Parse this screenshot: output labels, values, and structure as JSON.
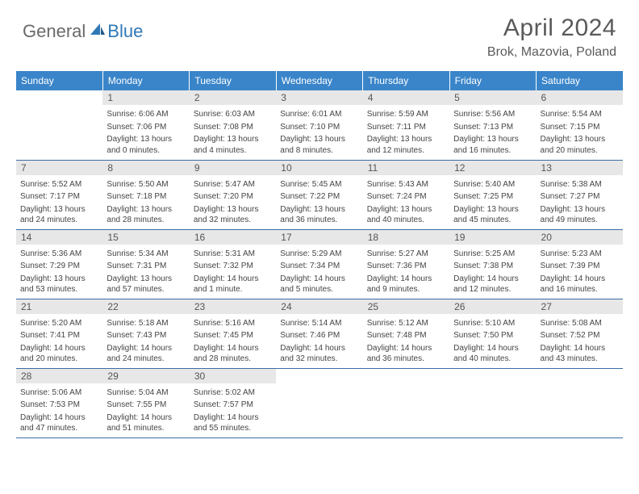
{
  "logo": {
    "general": "General",
    "blue": "Blue"
  },
  "title": "April 2024",
  "location": "Brok, Mazovia, Poland",
  "colors": {
    "header_bg": "#3a85c9",
    "header_text": "#ffffff",
    "daynum_bg": "#e7e7e7",
    "border": "#3a6ea5",
    "logo_gray": "#6a6a6a",
    "logo_blue": "#2f78b7"
  },
  "day_headers": [
    "Sunday",
    "Monday",
    "Tuesday",
    "Wednesday",
    "Thursday",
    "Friday",
    "Saturday"
  ],
  "weeks": [
    [
      null,
      {
        "n": "1",
        "sr": "6:06 AM",
        "ss": "7:06 PM",
        "dl": "13 hours and 0 minutes."
      },
      {
        "n": "2",
        "sr": "6:03 AM",
        "ss": "7:08 PM",
        "dl": "13 hours and 4 minutes."
      },
      {
        "n": "3",
        "sr": "6:01 AM",
        "ss": "7:10 PM",
        "dl": "13 hours and 8 minutes."
      },
      {
        "n": "4",
        "sr": "5:59 AM",
        "ss": "7:11 PM",
        "dl": "13 hours and 12 minutes."
      },
      {
        "n": "5",
        "sr": "5:56 AM",
        "ss": "7:13 PM",
        "dl": "13 hours and 16 minutes."
      },
      {
        "n": "6",
        "sr": "5:54 AM",
        "ss": "7:15 PM",
        "dl": "13 hours and 20 minutes."
      }
    ],
    [
      {
        "n": "7",
        "sr": "5:52 AM",
        "ss": "7:17 PM",
        "dl": "13 hours and 24 minutes."
      },
      {
        "n": "8",
        "sr": "5:50 AM",
        "ss": "7:18 PM",
        "dl": "13 hours and 28 minutes."
      },
      {
        "n": "9",
        "sr": "5:47 AM",
        "ss": "7:20 PM",
        "dl": "13 hours and 32 minutes."
      },
      {
        "n": "10",
        "sr": "5:45 AM",
        "ss": "7:22 PM",
        "dl": "13 hours and 36 minutes."
      },
      {
        "n": "11",
        "sr": "5:43 AM",
        "ss": "7:24 PM",
        "dl": "13 hours and 40 minutes."
      },
      {
        "n": "12",
        "sr": "5:40 AM",
        "ss": "7:25 PM",
        "dl": "13 hours and 45 minutes."
      },
      {
        "n": "13",
        "sr": "5:38 AM",
        "ss": "7:27 PM",
        "dl": "13 hours and 49 minutes."
      }
    ],
    [
      {
        "n": "14",
        "sr": "5:36 AM",
        "ss": "7:29 PM",
        "dl": "13 hours and 53 minutes."
      },
      {
        "n": "15",
        "sr": "5:34 AM",
        "ss": "7:31 PM",
        "dl": "13 hours and 57 minutes."
      },
      {
        "n": "16",
        "sr": "5:31 AM",
        "ss": "7:32 PM",
        "dl": "14 hours and 1 minute."
      },
      {
        "n": "17",
        "sr": "5:29 AM",
        "ss": "7:34 PM",
        "dl": "14 hours and 5 minutes."
      },
      {
        "n": "18",
        "sr": "5:27 AM",
        "ss": "7:36 PM",
        "dl": "14 hours and 9 minutes."
      },
      {
        "n": "19",
        "sr": "5:25 AM",
        "ss": "7:38 PM",
        "dl": "14 hours and 12 minutes."
      },
      {
        "n": "20",
        "sr": "5:23 AM",
        "ss": "7:39 PM",
        "dl": "14 hours and 16 minutes."
      }
    ],
    [
      {
        "n": "21",
        "sr": "5:20 AM",
        "ss": "7:41 PM",
        "dl": "14 hours and 20 minutes."
      },
      {
        "n": "22",
        "sr": "5:18 AM",
        "ss": "7:43 PM",
        "dl": "14 hours and 24 minutes."
      },
      {
        "n": "23",
        "sr": "5:16 AM",
        "ss": "7:45 PM",
        "dl": "14 hours and 28 minutes."
      },
      {
        "n": "24",
        "sr": "5:14 AM",
        "ss": "7:46 PM",
        "dl": "14 hours and 32 minutes."
      },
      {
        "n": "25",
        "sr": "5:12 AM",
        "ss": "7:48 PM",
        "dl": "14 hours and 36 minutes."
      },
      {
        "n": "26",
        "sr": "5:10 AM",
        "ss": "7:50 PM",
        "dl": "14 hours and 40 minutes."
      },
      {
        "n": "27",
        "sr": "5:08 AM",
        "ss": "7:52 PM",
        "dl": "14 hours and 43 minutes."
      }
    ],
    [
      {
        "n": "28",
        "sr": "5:06 AM",
        "ss": "7:53 PM",
        "dl": "14 hours and 47 minutes."
      },
      {
        "n": "29",
        "sr": "5:04 AM",
        "ss": "7:55 PM",
        "dl": "14 hours and 51 minutes."
      },
      {
        "n": "30",
        "sr": "5:02 AM",
        "ss": "7:57 PM",
        "dl": "14 hours and 55 minutes."
      },
      null,
      null,
      null,
      null
    ]
  ],
  "labels": {
    "sunrise": "Sunrise: ",
    "sunset": "Sunset: ",
    "daylight": "Daylight: "
  }
}
